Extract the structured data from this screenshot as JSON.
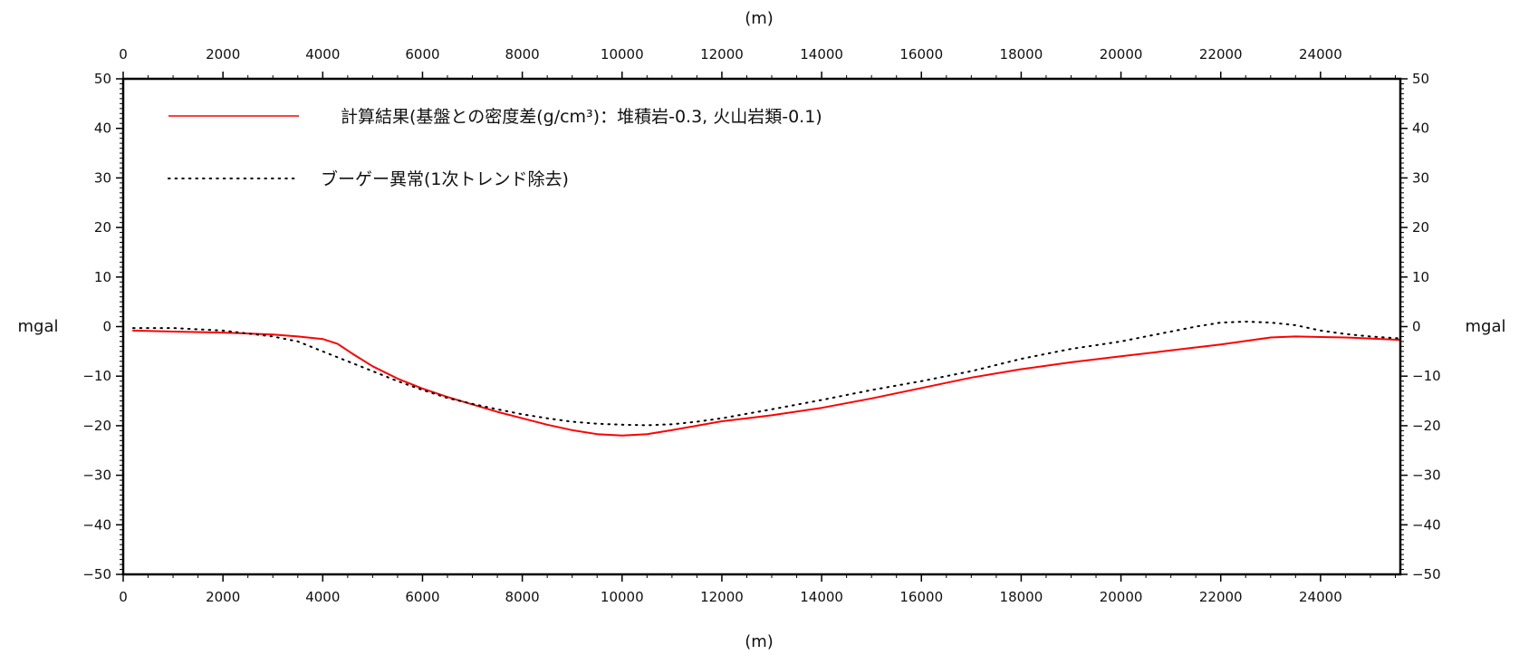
{
  "chart_data": {
    "type": "line",
    "xlabel_top": "(m)",
    "xlabel_bottom": "(m)",
    "ylabel_left": "mgal",
    "ylabel_right": "mgal",
    "xlim": [
      0,
      25600
    ],
    "ylim": [
      -50,
      50
    ],
    "x_ticks": [
      0,
      2000,
      4000,
      6000,
      8000,
      10000,
      12000,
      14000,
      16000,
      18000,
      20000,
      22000,
      24000
    ],
    "y_ticks": [
      50,
      40,
      30,
      20,
      10,
      0,
      -10,
      -20,
      -30,
      -40,
      -50
    ],
    "y_tick_labels": [
      "50",
      "40",
      "30",
      "20",
      "10",
      "0",
      "−10",
      "−20",
      "−30",
      "−40",
      "−50"
    ],
    "grid": false,
    "legend_position": "top-left",
    "series": [
      {
        "name": "計算結果(基盤との密度差(g/cm³)：堆積岩-0.3, 火山岩類-0.1)",
        "color": "#ff0000",
        "style": "solid",
        "x": [
          200,
          1000,
          2000,
          3000,
          3500,
          4000,
          4300,
          4600,
          5000,
          5500,
          6000,
          6500,
          7000,
          7500,
          8000,
          8500,
          9000,
          9500,
          10000,
          10500,
          11000,
          11500,
          12000,
          12500,
          13000,
          14000,
          15000,
          16000,
          17000,
          18000,
          19000,
          20000,
          21000,
          22000,
          22500,
          23000,
          23500,
          24000,
          24500,
          25000,
          25600
        ],
        "y": [
          -0.8,
          -1.0,
          -1.2,
          -1.6,
          -2.0,
          -2.5,
          -3.5,
          -5.5,
          -8.0,
          -10.5,
          -12.5,
          -14.2,
          -15.7,
          -17.2,
          -18.5,
          -19.8,
          -20.9,
          -21.7,
          -22.0,
          -21.7,
          -20.9,
          -20.0,
          -19.1,
          -18.5,
          -17.9,
          -16.4,
          -14.5,
          -12.4,
          -10.3,
          -8.6,
          -7.2,
          -6.0,
          -4.8,
          -3.6,
          -2.9,
          -2.2,
          -2.0,
          -2.1,
          -2.2,
          -2.4,
          -2.7
        ]
      },
      {
        "name": "ブーゲー異常(1次トレンド除去)",
        "color": "#000000",
        "style": "dotted",
        "x": [
          200,
          1000,
          2000,
          3000,
          3500,
          4000,
          4500,
          5000,
          5500,
          6000,
          6500,
          7000,
          7500,
          8000,
          8500,
          9000,
          9500,
          10000,
          10500,
          11000,
          11500,
          12000,
          13000,
          14000,
          15000,
          16000,
          17000,
          18000,
          19000,
          20000,
          20500,
          21000,
          21500,
          22000,
          22500,
          23000,
          23500,
          24000,
          24500,
          25000,
          25600
        ],
        "y": [
          -0.3,
          -0.3,
          -0.8,
          -2.0,
          -3.0,
          -5.0,
          -7.0,
          -9.0,
          -11.0,
          -12.8,
          -14.4,
          -15.6,
          -16.7,
          -17.7,
          -18.5,
          -19.2,
          -19.6,
          -19.8,
          -19.9,
          -19.7,
          -19.2,
          -18.5,
          -16.7,
          -14.8,
          -12.8,
          -11.0,
          -9.0,
          -6.5,
          -4.5,
          -3.0,
          -2.0,
          -1.0,
          0.0,
          0.8,
          1.0,
          0.8,
          0.3,
          -0.8,
          -1.5,
          -2.0,
          -2.4
        ]
      }
    ]
  }
}
